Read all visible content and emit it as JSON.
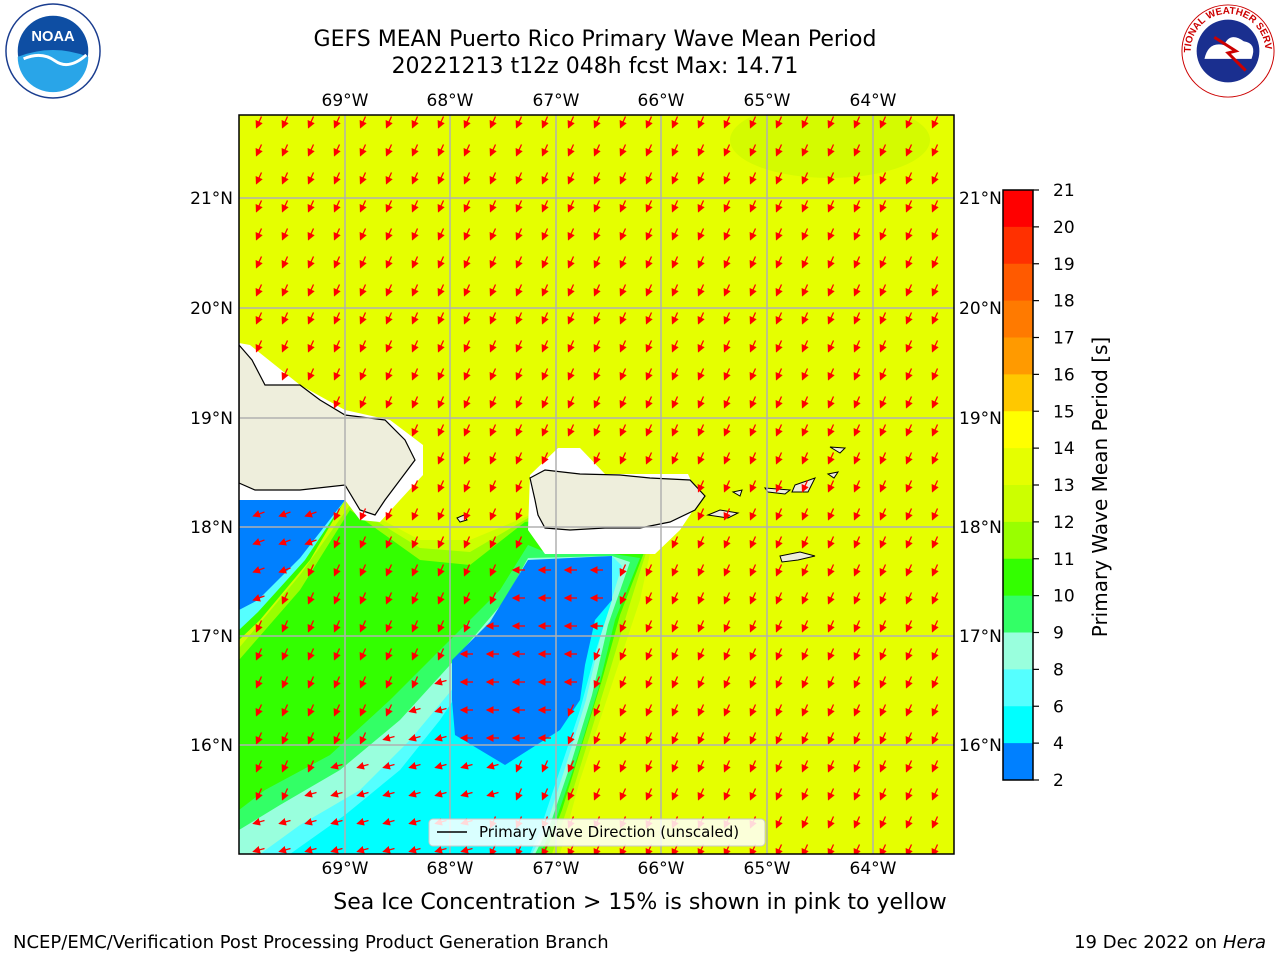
{
  "header": {
    "title_line1": "GEFS MEAN Puerto Rico Primary Wave Mean Period",
    "title_line2": "20221213 t12z 048h fcst   Max: 14.71"
  },
  "logos": {
    "left": {
      "icon": "noaa-logo",
      "text": "NOAA"
    },
    "right": {
      "icon": "national-weather-service-logo",
      "text": "NATIONAL WEATHER SERVICE"
    }
  },
  "map": {
    "lon_labels": [
      "69°W",
      "68°W",
      "67°W",
      "66°W",
      "65°W",
      "64°W"
    ],
    "lat_labels": [
      "21°N",
      "20°N",
      "19°N",
      "18°N",
      "17°N",
      "16°N"
    ],
    "legend_label": "Primary Wave Direction (unscaled)",
    "colors": {
      "field": "#e5ff00",
      "field_light": "#d4fb00",
      "land": "#eeeedc",
      "arrow": "#ff0000",
      "grid": "#b0b0b0"
    }
  },
  "colorbar": {
    "label": "Primary Wave Mean Period [s]",
    "ticks": [
      "21",
      "20",
      "19",
      "18",
      "17",
      "16",
      "15",
      "14",
      "13",
      "12",
      "11",
      "10",
      "9",
      "8",
      "6",
      "4",
      "2"
    ],
    "colors": [
      "#ff0000",
      "#ff3000",
      "#ff5a00",
      "#ff7a00",
      "#ff9a00",
      "#ffc800",
      "#ffff00",
      "#e5ff00",
      "#ccff00",
      "#99ff00",
      "#33ff00",
      "#33ff66",
      "#99ffdd",
      "#55ffff",
      "#00ffff",
      "#0080ff",
      "#0000ff"
    ]
  },
  "footer": {
    "subtitle": "Sea Ice Concentration > 15% is shown in pink to yellow",
    "left": "NCEP/EMC/Verification Post Processing Product Generation Branch",
    "right_date": "19 Dec 2022 on",
    "right_host": "Hera"
  }
}
